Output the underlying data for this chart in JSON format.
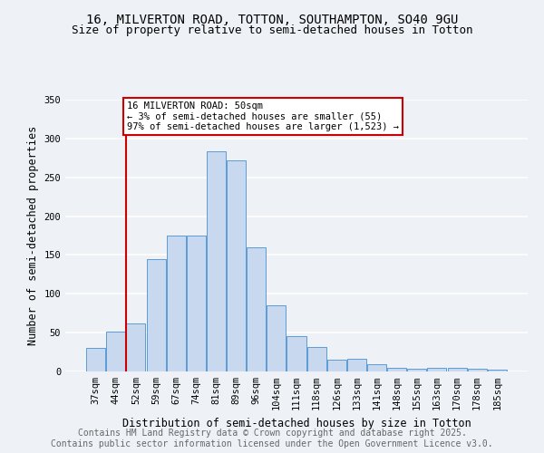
{
  "title_line1": "16, MILVERTON ROAD, TOTTON, SOUTHAMPTON, SO40 9GU",
  "title_line2": "Size of property relative to semi-detached houses in Totton",
  "xlabel": "Distribution of semi-detached houses by size in Totton",
  "ylabel": "Number of semi-detached properties",
  "categories": [
    "37sqm",
    "44sqm",
    "52sqm",
    "59sqm",
    "67sqm",
    "74sqm",
    "81sqm",
    "89sqm",
    "96sqm",
    "104sqm",
    "111sqm",
    "118sqm",
    "126sqm",
    "133sqm",
    "141sqm",
    "148sqm",
    "155sqm",
    "163sqm",
    "170sqm",
    "178sqm",
    "185sqm"
  ],
  "values": [
    30,
    51,
    62,
    145,
    175,
    175,
    283,
    272,
    160,
    85,
    46,
    31,
    15,
    16,
    9,
    5,
    3,
    5,
    5,
    4,
    2
  ],
  "bar_color": "#c8d8ee",
  "bar_edge_color": "#5b9bd5",
  "vline_color": "#cc0000",
  "annotation_box_text": "16 MILVERTON ROAD: 50sqm\n← 3% of semi-detached houses are smaller (55)\n97% of semi-detached houses are larger (1,523) →",
  "annotation_box_color": "#cc0000",
  "annotation_box_bg": "#ffffff",
  "ylim": [
    0,
    350
  ],
  "yticks": [
    0,
    50,
    100,
    150,
    200,
    250,
    300,
    350
  ],
  "footer_line1": "Contains HM Land Registry data © Crown copyright and database right 2025.",
  "footer_line2": "Contains public sector information licensed under the Open Government Licence v3.0.",
  "background_color": "#eef2f7",
  "grid_color": "#ffffff",
  "title_fontsize": 10,
  "subtitle_fontsize": 9,
  "axis_label_fontsize": 8.5,
  "tick_fontsize": 7.5,
  "annotation_fontsize": 7.5,
  "footer_fontsize": 7
}
